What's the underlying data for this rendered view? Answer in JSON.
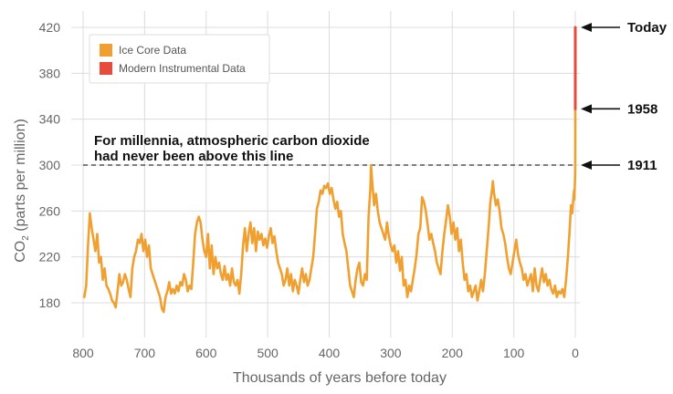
{
  "chart_data": {
    "type": "line",
    "title": "",
    "xlabel": "Thousands of years before today",
    "ylabel_main": "CO",
    "ylabel_sub": "2",
    "ylabel_rest": " (parts per million)",
    "xlim": [
      800,
      0
    ],
    "ylim": [
      165,
      430
    ],
    "x_ticks": [
      "800",
      "700",
      "600",
      "500",
      "400",
      "300",
      "200",
      "100",
      "0"
    ],
    "y_ticks": [
      "420",
      "380",
      "340",
      "300",
      "260",
      "220",
      "180"
    ],
    "grid": true,
    "legend": {
      "position": "top-left",
      "entries": [
        {
          "label": "Ice Core Data",
          "color": "#F0A030"
        },
        {
          "label": "Modern Instrumental Data",
          "color": "#E84A3C"
        }
      ]
    },
    "threshold": {
      "value": 300,
      "label_line1": "For millennia, atmospheric carbon dioxide",
      "label_line2": "had never been above this line"
    },
    "markers": [
      {
        "label": "Today",
        "value": 420
      },
      {
        "label": "1958",
        "value": 349
      },
      {
        "label": "1911",
        "value": 300
      }
    ],
    "series": [
      {
        "name": "Ice Core Data",
        "color": "#F0A030",
        "points": [
          [
            798,
            185
          ],
          [
            795,
            195
          ],
          [
            792,
            230
          ],
          [
            789,
            258
          ],
          [
            786,
            245
          ],
          [
            783,
            235
          ],
          [
            780,
            225
          ],
          [
            777,
            240
          ],
          [
            774,
            215
          ],
          [
            771,
            220
          ],
          [
            768,
            200
          ],
          [
            765,
            210
          ],
          [
            762,
            195
          ],
          [
            759,
            192
          ],
          [
            756,
            188
          ],
          [
            753,
            182
          ],
          [
            750,
            180
          ],
          [
            747,
            176
          ],
          [
            744,
            190
          ],
          [
            741,
            205
          ],
          [
            738,
            195
          ],
          [
            735,
            198
          ],
          [
            732,
            205
          ],
          [
            729,
            200
          ],
          [
            726,
            192
          ],
          [
            723,
            185
          ],
          [
            720,
            210
          ],
          [
            717,
            220
          ],
          [
            714,
            225
          ],
          [
            711,
            235
          ],
          [
            708,
            232
          ],
          [
            705,
            240
          ],
          [
            702,
            225
          ],
          [
            699,
            235
          ],
          [
            696,
            220
          ],
          [
            693,
            230
          ],
          [
            690,
            210
          ],
          [
            687,
            205
          ],
          [
            684,
            200
          ],
          [
            681,
            195
          ],
          [
            678,
            190
          ],
          [
            675,
            185
          ],
          [
            672,
            175
          ],
          [
            669,
            172
          ],
          [
            666,
            185
          ],
          [
            663,
            190
          ],
          [
            660,
            198
          ],
          [
            657,
            188
          ],
          [
            654,
            192
          ],
          [
            651,
            188
          ],
          [
            648,
            195
          ],
          [
            645,
            190
          ],
          [
            642,
            198
          ],
          [
            639,
            195
          ],
          [
            636,
            205
          ],
          [
            633,
            200
          ],
          [
            630,
            190
          ],
          [
            627,
            195
          ],
          [
            624,
            192
          ],
          [
            621,
            215
          ],
          [
            618,
            240
          ],
          [
            615,
            250
          ],
          [
            612,
            255
          ],
          [
            609,
            250
          ],
          [
            606,
            235
          ],
          [
            603,
            225
          ],
          [
            600,
            220
          ],
          [
            597,
            240
          ],
          [
            594,
            210
          ],
          [
            591,
            230
          ],
          [
            588,
            205
          ],
          [
            585,
            220
          ],
          [
            582,
            210
          ],
          [
            579,
            215
          ],
          [
            576,
            205
          ],
          [
            573,
            200
          ],
          [
            570,
            212
          ],
          [
            567,
            200
          ],
          [
            564,
            205
          ],
          [
            561,
            195
          ],
          [
            558,
            210
          ],
          [
            555,
            198
          ],
          [
            552,
            195
          ],
          [
            549,
            200
          ],
          [
            546,
            188
          ],
          [
            543,
            205
          ],
          [
            540,
            230
          ],
          [
            537,
            245
          ],
          [
            534,
            225
          ],
          [
            531,
            240
          ],
          [
            528,
            250
          ],
          [
            525,
            232
          ],
          [
            522,
            245
          ],
          [
            519,
            225
          ],
          [
            516,
            242
          ],
          [
            513,
            235
          ],
          [
            510,
            240
          ],
          [
            507,
            230
          ],
          [
            504,
            236
          ],
          [
            501,
            228
          ],
          [
            498,
            238
          ],
          [
            495,
            245
          ],
          [
            492,
            232
          ],
          [
            489,
            238
          ],
          [
            486,
            225
          ],
          [
            483,
            215
          ],
          [
            480,
            210
          ],
          [
            477,
            205
          ],
          [
            474,
            195
          ],
          [
            471,
            200
          ],
          [
            468,
            210
          ],
          [
            465,
            195
          ],
          [
            462,
            205
          ],
          [
            459,
            190
          ],
          [
            456,
            200
          ],
          [
            453,
            195
          ],
          [
            450,
            188
          ],
          [
            447,
            200
          ],
          [
            444,
            210
          ],
          [
            441,
            198
          ],
          [
            438,
            205
          ],
          [
            435,
            195
          ],
          [
            432,
            200
          ],
          [
            429,
            210
          ],
          [
            426,
            220
          ],
          [
            423,
            240
          ],
          [
            420,
            262
          ],
          [
            417,
            268
          ],
          [
            414,
            278
          ],
          [
            411,
            275
          ],
          [
            408,
            282
          ],
          [
            405,
            280
          ],
          [
            402,
            284
          ],
          [
            399,
            275
          ],
          [
            396,
            280
          ],
          [
            393,
            270
          ],
          [
            390,
            262
          ],
          [
            387,
            268
          ],
          [
            384,
            255
          ],
          [
            381,
            260
          ],
          [
            378,
            240
          ],
          [
            375,
            232
          ],
          [
            372,
            225
          ],
          [
            369,
            210
          ],
          [
            366,
            195
          ],
          [
            363,
            190
          ],
          [
            360,
            185
          ],
          [
            357,
            200
          ],
          [
            354,
            210
          ],
          [
            351,
            215
          ],
          [
            348,
            198
          ],
          [
            345,
            195
          ],
          [
            342,
            205
          ],
          [
            339,
            200
          ],
          [
            336,
            255
          ],
          [
            333,
            280
          ],
          [
            332,
            300
          ],
          [
            330,
            285
          ],
          [
            327,
            265
          ],
          [
            324,
            275
          ],
          [
            321,
            260
          ],
          [
            318,
            250
          ],
          [
            315,
            245
          ],
          [
            312,
            240
          ],
          [
            309,
            235
          ],
          [
            306,
            250
          ],
          [
            303,
            238
          ],
          [
            300,
            230
          ],
          [
            297,
            225
          ],
          [
            294,
            230
          ],
          [
            291,
            215
          ],
          [
            288,
            225
          ],
          [
            285,
            208
          ],
          [
            282,
            220
          ],
          [
            279,
            195
          ],
          [
            276,
            200
          ],
          [
            273,
            185
          ],
          [
            270,
            195
          ],
          [
            267,
            190
          ],
          [
            264,
            200
          ],
          [
            261,
            210
          ],
          [
            258,
            222
          ],
          [
            255,
            240
          ],
          [
            252,
            245
          ],
          [
            249,
            272
          ],
          [
            246,
            268
          ],
          [
            243,
            260
          ],
          [
            240,
            248
          ],
          [
            237,
            235
          ],
          [
            234,
            240
          ],
          [
            231,
            232
          ],
          [
            228,
            225
          ],
          [
            225,
            215
          ],
          [
            222,
            210
          ],
          [
            219,
            205
          ],
          [
            216,
            225
          ],
          [
            213,
            240
          ],
          [
            210,
            252
          ],
          [
            207,
            265
          ],
          [
            204,
            255
          ],
          [
            201,
            240
          ],
          [
            198,
            250
          ],
          [
            195,
            235
          ],
          [
            192,
            245
          ],
          [
            189,
            225
          ],
          [
            186,
            235
          ],
          [
            183,
            215
          ],
          [
            180,
            200
          ],
          [
            177,
            205
          ],
          [
            174,
            190
          ],
          [
            171,
            195
          ],
          [
            168,
            185
          ],
          [
            165,
            190
          ],
          [
            162,
            195
          ],
          [
            159,
            182
          ],
          [
            156,
            190
          ],
          [
            153,
            200
          ],
          [
            150,
            190
          ],
          [
            147,
            205
          ],
          [
            144,
            225
          ],
          [
            141,
            245
          ],
          [
            138,
            268
          ],
          [
            135,
            280
          ],
          [
            134,
            286
          ],
          [
            132,
            275
          ],
          [
            129,
            265
          ],
          [
            126,
            270
          ],
          [
            123,
            260
          ],
          [
            120,
            245
          ],
          [
            117,
            240
          ],
          [
            114,
            232
          ],
          [
            111,
            220
          ],
          [
            108,
            210
          ],
          [
            105,
            205
          ],
          [
            102,
            215
          ],
          [
            99,
            225
          ],
          [
            96,
            235
          ],
          [
            93,
            222
          ],
          [
            90,
            215
          ],
          [
            87,
            210
          ],
          [
            84,
            200
          ],
          [
            81,
            205
          ],
          [
            78,
            195
          ],
          [
            75,
            200
          ],
          [
            72,
            205
          ],
          [
            69,
            190
          ],
          [
            66,
            210
          ],
          [
            63,
            195
          ],
          [
            60,
            190
          ],
          [
            57,
            200
          ],
          [
            54,
            210
          ],
          [
            51,
            198
          ],
          [
            48,
            205
          ],
          [
            45,
            195
          ],
          [
            42,
            200
          ],
          [
            39,
            192
          ],
          [
            36,
            188
          ],
          [
            33,
            195
          ],
          [
            30,
            185
          ],
          [
            27,
            190
          ],
          [
            24,
            188
          ],
          [
            21,
            192
          ],
          [
            18,
            185
          ],
          [
            15,
            200
          ],
          [
            12,
            220
          ],
          [
            9,
            245
          ],
          [
            7,
            265
          ],
          [
            5,
            258
          ],
          [
            3,
            272
          ],
          [
            2,
            278
          ],
          [
            1.5,
            270
          ],
          [
            1,
            280
          ],
          [
            0.6,
            285
          ],
          [
            0.3,
            292
          ],
          [
            0.1,
            300
          ],
          [
            0.06,
            310
          ],
          [
            0.03,
            330
          ],
          [
            0,
            349
          ]
        ]
      },
      {
        "name": "Modern Instrumental Data",
        "color": "#E84A3C",
        "points": [
          [
            0,
            349
          ],
          [
            0,
            420
          ]
        ]
      }
    ]
  }
}
